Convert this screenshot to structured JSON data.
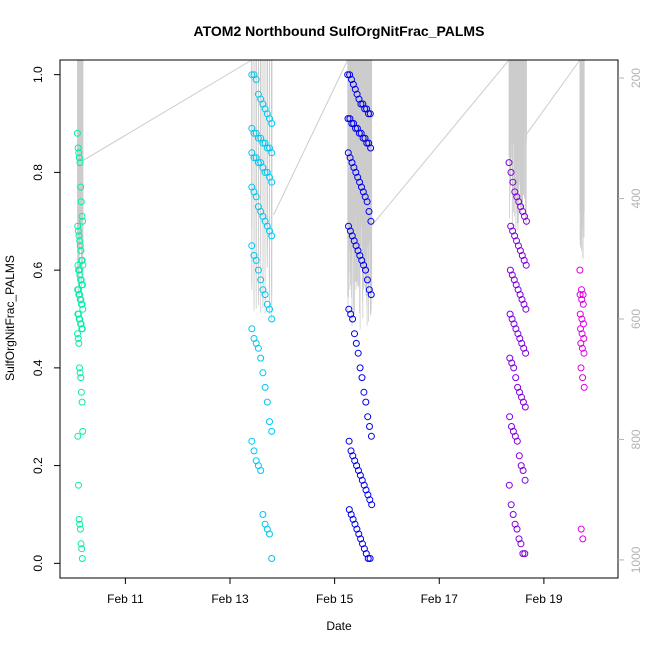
{
  "chart_data": {
    "type": "scatter",
    "title": "ATOM2 Northbound SulfOrgNitFrac_PALMS",
    "xlabel": "Date",
    "ylabel": "SulfOrgNitFrac_PALMS",
    "x_range": [
      "2017-02-09T18:00",
      "2017-02-20T10:00"
    ],
    "ylim": [
      -0.03,
      1.03
    ],
    "x_ticks": [
      {
        "date": "2017-02-11",
        "label": "Feb 11"
      },
      {
        "date": "2017-02-13",
        "label": "Feb 13"
      },
      {
        "date": "2017-02-15",
        "label": "Feb 15"
      },
      {
        "date": "2017-02-17",
        "label": "Feb 17"
      },
      {
        "date": "2017-02-19",
        "label": "Feb 19"
      }
    ],
    "y_ticks": [
      0.0,
      0.2,
      0.4,
      0.6,
      0.8,
      1.0
    ],
    "y_tick_labels": [
      "0.0",
      "0.2",
      "0.4",
      "0.6",
      "0.8",
      "1.0"
    ],
    "right_axis": {
      "color": "#b4b4b4",
      "range": [
        1030,
        170
      ],
      "ticks": [
        200,
        400,
        600,
        800,
        1000
      ],
      "tick_labels": [
        "200",
        "400",
        "600",
        "800",
        "1000"
      ],
      "reversed": true
    },
    "grid": false,
    "legend": "none",
    "profile_line_color": "#cccccc",
    "series": [
      {
        "flight_start": "2017-02-10T02:00",
        "flight_end": "2017-02-10T04:30",
        "color": "#00f0a8",
        "values": [
          0.88,
          0.85,
          0.84,
          0.83,
          0.82,
          0.77,
          0.74,
          0.71,
          0.7,
          0.69,
          0.68,
          0.67,
          0.66,
          0.65,
          0.64,
          0.62,
          0.62,
          0.61,
          0.61,
          0.6,
          0.6,
          0.59,
          0.58,
          0.58,
          0.57,
          0.57,
          0.56,
          0.56,
          0.55,
          0.55,
          0.54,
          0.54,
          0.53,
          0.53,
          0.52,
          0.51,
          0.51,
          0.5,
          0.5,
          0.49,
          0.49,
          0.48,
          0.48,
          0.47,
          0.46,
          0.45,
          0.4,
          0.39,
          0.38,
          0.35,
          0.33,
          0.27,
          0.26,
          0.16,
          0.09,
          0.08,
          0.07,
          0.04,
          0.03,
          0.01
        ],
        "pressure": [
          215,
          238,
          231,
          263,
          354,
          330,
          390,
          401,
          385,
          342,
          492,
          352,
          467,
          484,
          365,
          395,
          441,
          489,
          382,
          483,
          466,
          482,
          466,
          355,
          463,
          347,
          533,
          386,
          444,
          418,
          440,
          332,
          509,
          359,
          526,
          477,
          537,
          500,
          423,
          401,
          416,
          456,
          396,
          457,
          555,
          404,
          494,
          475,
          454,
          402,
          501,
          526,
          370,
          361,
          569,
          416,
          466,
          360,
          556,
          337
        ]
      },
      {
        "flight_start": "2017-02-13T10:00",
        "flight_end": "2017-02-13T20:00",
        "color": "#00c8f0",
        "values": [
          1.0,
          1.0,
          0.99,
          0.96,
          0.95,
          0.94,
          0.93,
          0.92,
          0.91,
          0.9,
          0.89,
          0.88,
          0.88,
          0.87,
          0.87,
          0.86,
          0.86,
          0.85,
          0.85,
          0.84,
          0.84,
          0.83,
          0.83,
          0.82,
          0.82,
          0.81,
          0.8,
          0.8,
          0.79,
          0.78,
          0.77,
          0.76,
          0.75,
          0.73,
          0.72,
          0.71,
          0.7,
          0.69,
          0.68,
          0.67,
          0.65,
          0.63,
          0.62,
          0.6,
          0.58,
          0.56,
          0.55,
          0.53,
          0.52,
          0.5,
          0.48,
          0.46,
          0.45,
          0.44,
          0.42,
          0.39,
          0.36,
          0.33,
          0.29,
          0.27,
          0.25,
          0.23,
          0.21,
          0.2,
          0.19,
          0.1,
          0.08,
          0.07,
          0.06,
          0.01
        ],
        "pressure": [
          403,
          451,
          526,
          567,
          361,
          578,
          436,
          481,
          471,
          468,
          552,
          565,
          554,
          469,
          590,
          569,
          591,
          460,
          408,
          601,
          542,
          522,
          381,
          577,
          420,
          582,
          520,
          510,
          419,
          562,
          389,
          586,
          382,
          500,
          429,
          397,
          444,
          470,
          531,
          546,
          451,
          390,
          501,
          551,
          398,
          409,
          476,
          475,
          583,
          581,
          446,
          459,
          392,
          418,
          502,
          385,
          488,
          496,
          394,
          494,
          404,
          391,
          583,
          507,
          381,
          533,
          466,
          515,
          592,
          427
        ]
      },
      {
        "flight_start": "2017-02-15T06:00",
        "flight_end": "2017-02-15T17:00",
        "color": "#0000f0",
        "values": [
          1.0,
          1.0,
          0.99,
          0.98,
          0.97,
          0.96,
          0.95,
          0.94,
          0.94,
          0.93,
          0.93,
          0.92,
          0.92,
          0.91,
          0.91,
          0.9,
          0.9,
          0.89,
          0.89,
          0.88,
          0.88,
          0.87,
          0.87,
          0.86,
          0.86,
          0.85,
          0.84,
          0.83,
          0.82,
          0.81,
          0.8,
          0.79,
          0.78,
          0.77,
          0.76,
          0.75,
          0.74,
          0.72,
          0.7,
          0.69,
          0.68,
          0.67,
          0.66,
          0.65,
          0.64,
          0.63,
          0.62,
          0.61,
          0.6,
          0.58,
          0.56,
          0.55,
          0.52,
          0.51,
          0.5,
          0.47,
          0.45,
          0.43,
          0.4,
          0.38,
          0.35,
          0.33,
          0.3,
          0.28,
          0.26,
          0.25,
          0.23,
          0.22,
          0.21,
          0.2,
          0.19,
          0.18,
          0.17,
          0.16,
          0.15,
          0.14,
          0.13,
          0.12,
          0.11,
          0.1,
          0.09,
          0.08,
          0.07,
          0.06,
          0.05,
          0.04,
          0.03,
          0.02,
          0.01,
          0.01
        ],
        "pressure": [
          562,
          403,
          565,
          490,
          539,
          454,
          543,
          514,
          599,
          509,
          548,
          604,
          591,
          596,
          551,
          497,
          598,
          401,
          492,
          422,
          444,
          418,
          546,
          579,
          562,
          513,
          516,
          467,
          612,
          553,
          426,
          545,
          590,
          448,
          535,
          549,
          611,
          423,
          595,
          565,
          518,
          542,
          529,
          551,
          484,
          555,
          418,
          551,
          462,
          538,
          473,
          585,
          524,
          544,
          483,
          589,
          438,
          454,
          617,
          480,
          418,
          541,
          452,
          397,
          538,
          485,
          398,
          415,
          459,
          452,
          547,
          473,
          546,
          523,
          561,
          481,
          543,
          559,
          423,
          504,
          453,
          512,
          538,
          394,
          414,
          572,
          453,
          405,
          432,
          445
        ]
      },
      {
        "flight_start": "2017-02-18T08:00",
        "flight_end": "2017-02-18T16:00",
        "color": "#8000e0",
        "values": [
          0.82,
          0.8,
          0.78,
          0.76,
          0.75,
          0.74,
          0.73,
          0.72,
          0.71,
          0.7,
          0.69,
          0.68,
          0.67,
          0.66,
          0.65,
          0.64,
          0.63,
          0.62,
          0.61,
          0.6,
          0.59,
          0.58,
          0.57,
          0.56,
          0.55,
          0.54,
          0.53,
          0.52,
          0.51,
          0.5,
          0.49,
          0.48,
          0.47,
          0.46,
          0.45,
          0.44,
          0.43,
          0.42,
          0.41,
          0.4,
          0.38,
          0.36,
          0.35,
          0.34,
          0.33,
          0.32,
          0.3,
          0.28,
          0.27,
          0.26,
          0.25,
          0.22,
          0.2,
          0.19,
          0.17,
          0.16,
          0.12,
          0.1,
          0.08,
          0.07,
          0.05,
          0.04,
          0.02,
          0.02
        ],
        "pressure": [
          330,
          297,
          342,
          395,
          356,
          384,
          410,
          417,
          400,
          305,
          371,
          384,
          321,
          381,
          441,
          414,
          368,
          286,
          446,
          380,
          446,
          430,
          424,
          298,
          405,
          417,
          281,
          383,
          394,
          357,
          310,
          451,
          453,
          327,
          390,
          394,
          438,
          403,
          306,
          308,
          300,
          279,
          357,
          410,
          353,
          427,
          433,
          301,
          294,
          381,
          441,
          371,
          402,
          395,
          351,
          339,
          332,
          423,
          399,
          300,
          377,
          425,
          372,
          293
        ]
      },
      {
        "flight_start": "2017-02-19T16:30",
        "flight_end": "2017-02-19T18:30",
        "color": "#e000e0",
        "values": [
          0.6,
          0.56,
          0.55,
          0.55,
          0.54,
          0.53,
          0.51,
          0.5,
          0.49,
          0.48,
          0.47,
          0.46,
          0.45,
          0.44,
          0.43,
          0.4,
          0.38,
          0.36,
          0.07,
          0.05
        ],
        "pressure": [
          423,
          465,
          498,
          471,
          487,
          441,
          478,
          418,
          428,
          415,
          443,
          424,
          482,
          405,
          465,
          407,
          453,
          422,
          442,
          500
        ]
      }
    ]
  }
}
